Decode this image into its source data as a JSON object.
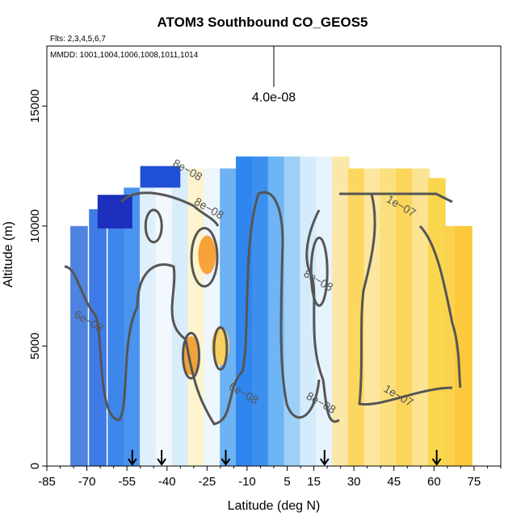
{
  "chart_data": {
    "type": "heatmap",
    "title": "ATOM3 Southbound CO_GEOS5",
    "flights_note": "Flts: 2,3,4,5,6,7",
    "dates_note": "MMDD: 1001,1004,1006,1008,1011,1014",
    "xlabel": "Latitude (deg N)",
    "ylabel": "Altitude (m)",
    "xlim": [
      -85,
      85
    ],
    "ylim": [
      0,
      17500
    ],
    "x_ticks": [
      -85,
      -70,
      -55,
      -40,
      -25,
      -10,
      5,
      15,
      30,
      45,
      60,
      75
    ],
    "y_ticks": [
      0,
      5000,
      10000,
      15000
    ],
    "color_key": {
      "value_label": "4.0e-08",
      "altitude_top": 17500,
      "altitude_bottom": 15800
    },
    "contour_labels": [
      {
        "text": "8e−08",
        "x": -33,
        "y": 12200
      },
      {
        "text": "8e−08",
        "x": -25,
        "y": 10600
      },
      {
        "text": "1e−07",
        "x": 47,
        "y": 10700
      },
      {
        "text": "6e−08",
        "x": -70,
        "y": 5900
      },
      {
        "text": "8e−08",
        "x": 16,
        "y": 7600
      },
      {
        "text": "6e−08",
        "x": -12,
        "y": 2900
      },
      {
        "text": "8e−08",
        "x": 17,
        "y": 2500
      },
      {
        "text": "1e−07",
        "x": 46,
        "y": 2800
      }
    ],
    "flight_markers_lat": [
      -53,
      -42,
      -18,
      19,
      61
    ],
    "bands": [
      {
        "lat": -73,
        "top": 10000,
        "color": "#4f83e0"
      },
      {
        "lat": -66,
        "top": 10700,
        "color": "#3f7be6"
      },
      {
        "lat": -59,
        "top": 11200,
        "color": "#3d86ea"
      },
      {
        "lat": -53,
        "top": 11600,
        "color": "#4a93ee"
      },
      {
        "lat": -47,
        "top": 12400,
        "color": "#dff0fb"
      },
      {
        "lat": -41,
        "top": 12400,
        "color": "#f3f8ff"
      },
      {
        "lat": -35,
        "top": 12400,
        "color": "#d9ecfb"
      },
      {
        "lat": -29,
        "top": 12400,
        "color": "#fdf3cd"
      },
      {
        "lat": -23,
        "top": 12400,
        "color": "#eef6fd"
      },
      {
        "lat": -17,
        "top": 12400,
        "color": "#6db2f2"
      },
      {
        "lat": -11,
        "top": 12900,
        "color": "#2f86ee"
      },
      {
        "lat": -5,
        "top": 12900,
        "color": "#3d8fef"
      },
      {
        "lat": 1,
        "top": 12900,
        "color": "#6db5f4"
      },
      {
        "lat": 7,
        "top": 12900,
        "color": "#9ed0f6"
      },
      {
        "lat": 13,
        "top": 12900,
        "color": "#d4ebfb"
      },
      {
        "lat": 19,
        "top": 12900,
        "color": "#e6f3fc"
      },
      {
        "lat": 25,
        "top": 12900,
        "color": "#fbe8a8"
      },
      {
        "lat": 31,
        "top": 12400,
        "color": "#fcd760"
      },
      {
        "lat": 37,
        "top": 12400,
        "color": "#fde7a0"
      },
      {
        "lat": 43,
        "top": 12400,
        "color": "#fbe07e"
      },
      {
        "lat": 49,
        "top": 12400,
        "color": "#fcd55c"
      },
      {
        "lat": 55,
        "top": 12400,
        "color": "#fbe391"
      },
      {
        "lat": 61,
        "top": 12000,
        "color": "#f9d64e"
      },
      {
        "lat": 67,
        "top": 10000,
        "color": "#fbd250"
      },
      {
        "lat": 71,
        "top": 10000,
        "color": "#fcc93c"
      }
    ],
    "hotspots": [
      {
        "lat": -25,
        "alt": 8800,
        "color": "#f7a33a"
      },
      {
        "lat": -31,
        "alt": 4600,
        "color": "#f0a33a"
      },
      {
        "lat": -20,
        "alt": 5000,
        "color": "#f9d060"
      }
    ]
  }
}
